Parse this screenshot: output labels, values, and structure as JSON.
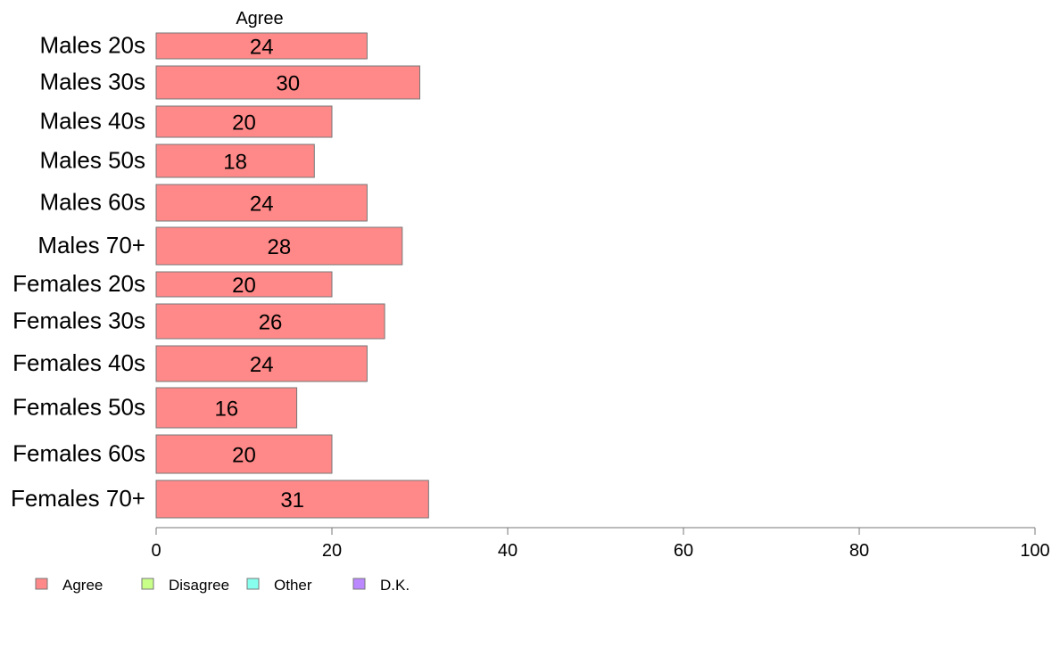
{
  "chart_data": {
    "type": "bar",
    "orientation": "horizontal",
    "stacked": true,
    "series_header": "Agree",
    "categories": [
      "Males 20s",
      "Males 30s",
      "Males 40s",
      "Males 50s",
      "Males 60s",
      "Males 70+",
      "Females 20s",
      "Females 30s",
      "Females 40s",
      "Females 50s",
      "Females 60s",
      "Females 70+"
    ],
    "series": [
      {
        "name": "Agree",
        "color": "#FF8888",
        "values": [
          24,
          30,
          20,
          18,
          24,
          28,
          20,
          26,
          24,
          16,
          20,
          31
        ],
        "value_labels": [
          "24",
          "30",
          "20",
          "18",
          "24",
          "28",
          "20",
          "26",
          "24",
          "16",
          "20",
          "31"
        ]
      }
    ],
    "xlim": [
      0,
      100
    ],
    "xticks": [
      0,
      20,
      40,
      60,
      80,
      100
    ],
    "xtick_labels": [
      "0",
      "20",
      "40",
      "60",
      "80",
      "100"
    ],
    "legend_position": "bottom-left",
    "legend": [
      {
        "label": "Agree",
        "color": "#FF8888"
      },
      {
        "label": "Disagree",
        "color": "#C8FF88"
      },
      {
        "label": "Other",
        "color": "#88FFEE"
      },
      {
        "label": "D.K.",
        "color": "#BB88FF"
      }
    ],
    "grid": false,
    "xlabel": "",
    "ylabel": ""
  }
}
